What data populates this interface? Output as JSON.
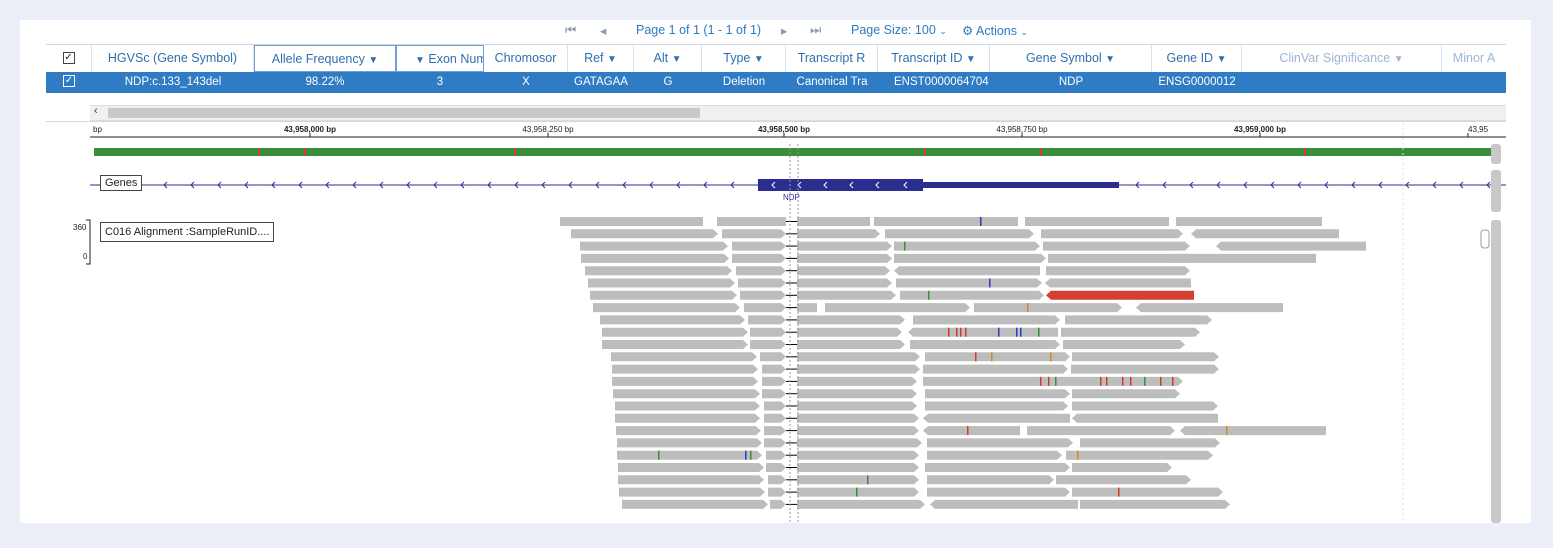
{
  "pager": {
    "first_icon": "first-page-icon",
    "prev_icon": "prev-page-icon",
    "page_info": "Page 1 of 1 (1 - 1 of 1)",
    "next_icon": "next-page-icon",
    "last_icon": "last-page-icon",
    "page_size_label": "Page Size: 100",
    "actions_label": "Actions"
  },
  "grid": {
    "columns": [
      {
        "label": "HGVSc (Gene Symbol)",
        "filter": false
      },
      {
        "label": "Allele Frequency",
        "filter": true
      },
      {
        "label": "Exon Num",
        "filter": false
      },
      {
        "label": "Chromosor",
        "filter": false
      },
      {
        "label": "Ref",
        "filter": true
      },
      {
        "label": "Alt",
        "filter": true
      },
      {
        "label": "Type",
        "filter": true
      },
      {
        "label": "Transcript R",
        "filter": false
      },
      {
        "label": "Transcript ID",
        "filter": true
      },
      {
        "label": "Gene Symbol",
        "filter": true
      },
      {
        "label": "Gene ID",
        "filter": true
      },
      {
        "label": "ClinVar Significance",
        "filter": true
      },
      {
        "label": "Minor A",
        "filter": false
      }
    ],
    "row": [
      "NDP:c.133_143del",
      "98.22%",
      "3",
      "X",
      "GATAGAA",
      "G",
      "Deletion",
      "Canonical Tra",
      "ENST0000064704",
      "NDP",
      "ENSG0000012",
      "",
      ""
    ]
  },
  "ruler": {
    "unit_label": "bp",
    "ticks": [
      "43,958,000 bp",
      "43,958,250 bp",
      "43,958,500 bp",
      "43,958,750 bp",
      "43,959,000 bp",
      "43,95"
    ]
  },
  "genes_track": {
    "label": "Genes",
    "gene_name": "NDP"
  },
  "alignment_track": {
    "label": "C016 Alignment :SampleRunID....",
    "scale_max": "360",
    "scale_min": "0"
  },
  "colors": {
    "accent": "#2f7cc4",
    "header_text": "#2f6fb0",
    "gene": "#2b2e8f",
    "read": "#bdbdbd",
    "read_highlight": "#d2402f"
  }
}
